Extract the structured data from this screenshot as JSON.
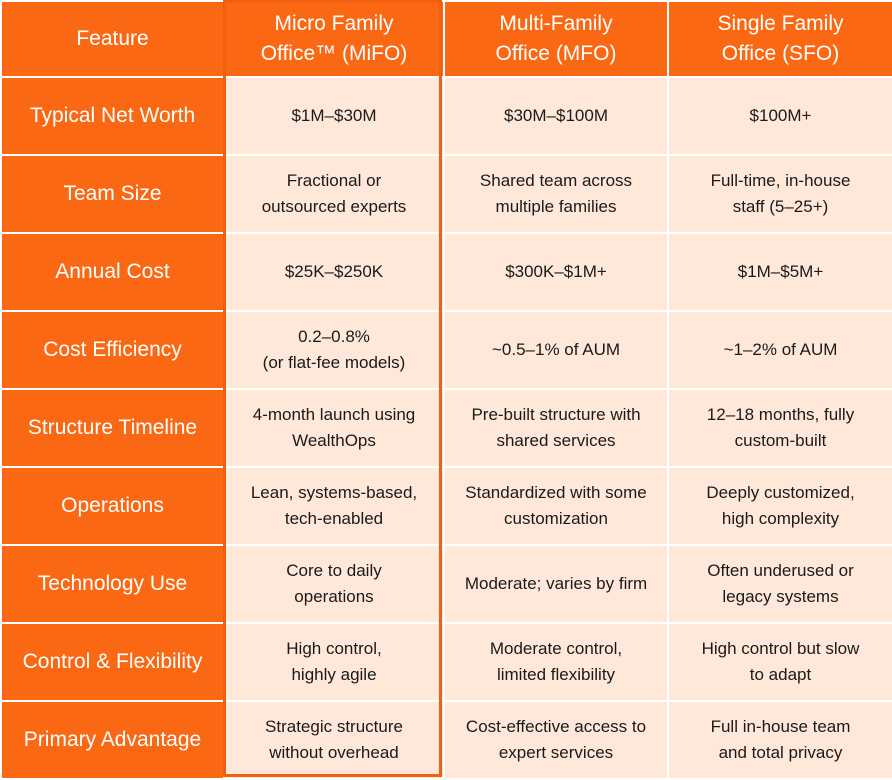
{
  "columns": [
    {
      "line1": "Feature",
      "line2": ""
    },
    {
      "line1": "Micro Family",
      "line2": "Office™ (MiFO)"
    },
    {
      "line1": "Multi-Family",
      "line2": "Office (MFO)"
    },
    {
      "line1": "Single Family",
      "line2": "Office (SFO)"
    }
  ],
  "rows": [
    {
      "feature": "Typical Net Worth",
      "mifo": [
        "$1M–$30M"
      ],
      "mfo": [
        "$30M–$100M"
      ],
      "sfo": [
        "$100M+"
      ]
    },
    {
      "feature": "Team Size",
      "mifo": [
        "Fractional or",
        "outsourced experts"
      ],
      "mfo": [
        "Shared team across",
        "multiple families"
      ],
      "sfo": [
        "Full-time, in-house",
        "staff (5–25+)"
      ]
    },
    {
      "feature": "Annual Cost",
      "mifo": [
        "$25K–$250K"
      ],
      "mfo": [
        "$300K–$1M+"
      ],
      "sfo": [
        "$1M–$5M+"
      ]
    },
    {
      "feature": "Cost Efficiency",
      "mifo": [
        "0.2–0.8%",
        "(or flat-fee models)"
      ],
      "mfo": [
        "~0.5–1% of AUM"
      ],
      "sfo": [
        "~1–2% of AUM"
      ]
    },
    {
      "feature": "Structure Timeline",
      "mifo": [
        "4-month launch using",
        "WealthOps"
      ],
      "mfo": [
        "Pre-built structure with",
        "shared services"
      ],
      "sfo": [
        "12–18 months, fully",
        "custom-built"
      ]
    },
    {
      "feature": "Operations",
      "mifo": [
        "Lean, systems-based,",
        "tech-enabled"
      ],
      "mfo": [
        "Standardized with some",
        "customization"
      ],
      "sfo": [
        "Deeply customized,",
        "high complexity"
      ]
    },
    {
      "feature": "Technology Use",
      "mifo": [
        "Core to daily",
        "operations"
      ],
      "mfo": [
        "Moderate; varies by firm"
      ],
      "sfo": [
        "Often underused or",
        "legacy systems"
      ]
    },
    {
      "feature": "Control & Flexibility",
      "mifo": [
        "High control,",
        "highly agile"
      ],
      "mfo": [
        "Moderate control,",
        "limited flexibility"
      ],
      "sfo": [
        "High control but slow",
        "to adapt"
      ]
    },
    {
      "feature": "Primary Advantage",
      "mifo": [
        "Strategic structure",
        "without overhead"
      ],
      "mfo": [
        "Cost-effective access to",
        "expert services"
      ],
      "sfo": [
        "Full in-house team",
        "and total privacy"
      ]
    }
  ],
  "colors": {
    "header_bg": "#fa6814",
    "cell_bg": "#ffe8da",
    "highlight_border": "#f06010"
  }
}
